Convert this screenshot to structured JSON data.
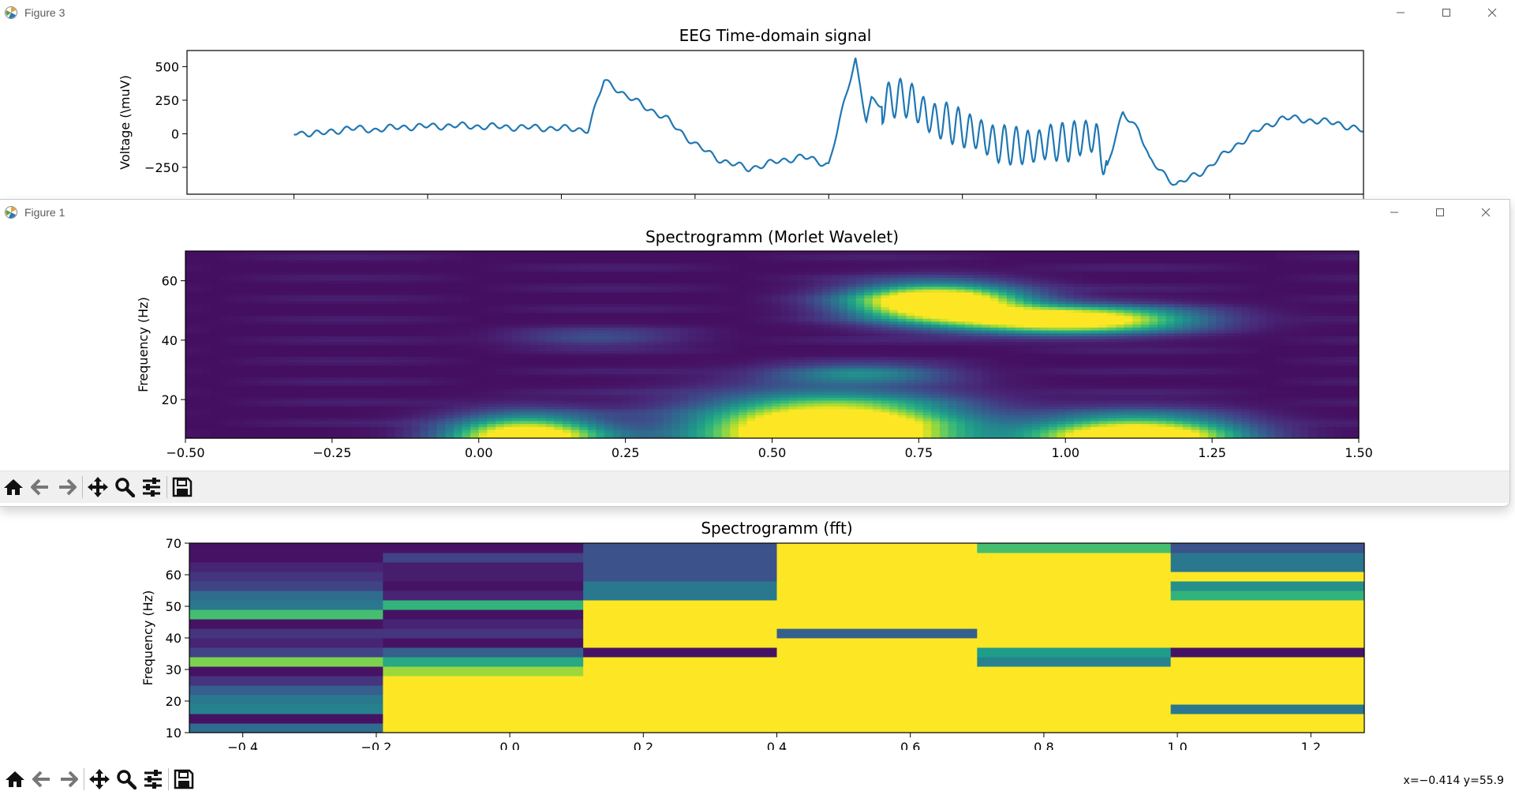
{
  "windows": {
    "fig3": {
      "title": "Figure 3"
    },
    "fig1": {
      "title": "Figure 1"
    }
  },
  "colors": {
    "line": "#1f77b4",
    "viridis_low": "#440154",
    "viridis_high": "#fde725"
  },
  "toolbar_icons": [
    "home-icon",
    "back-arrow-icon",
    "forward-arrow-icon",
    "pan-icon",
    "zoom-icon",
    "configure-subplots-icon",
    "save-icon"
  ],
  "status": {
    "coords": "x=−0.414 y=55.9"
  },
  "chart_data": [
    {
      "id": "eeg",
      "type": "line",
      "title": "EEG Time-domain signal",
      "xlabel": "",
      "ylabel": "Voltage (\\muV)",
      "xlim": [
        -0.7,
        1.5
      ],
      "ylim": [
        -450,
        620
      ],
      "yticks": [
        500,
        250,
        0,
        -250
      ],
      "ytick_labels": [
        "500",
        "250",
        "0",
        "−250"
      ],
      "xticks": [
        -0.5,
        -0.25,
        0.0,
        0.25,
        0.5,
        0.75,
        1.0,
        1.25,
        1.5
      ],
      "grid": false,
      "x": [
        -0.5,
        -0.45,
        -0.4,
        -0.35,
        -0.3,
        -0.2,
        -0.1,
        0.0,
        0.05,
        0.08,
        0.1,
        0.12,
        0.15,
        0.2,
        0.25,
        0.3,
        0.35,
        0.4,
        0.45,
        0.5,
        0.55,
        0.57,
        0.58,
        0.6,
        0.62,
        0.65,
        0.7,
        0.75,
        0.8,
        0.85,
        0.9,
        0.95,
        1.0,
        1.02,
        1.05,
        1.08,
        1.1,
        1.15,
        1.2,
        1.25,
        1.3,
        1.35,
        1.4,
        1.45,
        1.5
      ],
      "y": [
        10,
        0,
        40,
        30,
        50,
        60,
        50,
        40,
        30,
        400,
        350,
        280,
        220,
        100,
        -80,
        -200,
        -260,
        -210,
        -170,
        -230,
        560,
        100,
        250,
        200,
        280,
        250,
        100,
        50,
        -50,
        -100,
        -80,
        -50,
        -20,
        -250,
        150,
        40,
        -200,
        -380,
        -280,
        -120,
        20,
        120,
        100,
        80,
        20
      ]
    },
    {
      "id": "morlet",
      "type": "heatmap",
      "title": "Spectrogramm (Morlet Wavelet)",
      "xlabel": "",
      "ylabel": "Frequency (Hz)",
      "xlim": [
        -0.5,
        1.5
      ],
      "ylim": [
        7,
        70
      ],
      "xticks": [
        -0.5,
        -0.25,
        0.0,
        0.25,
        0.5,
        0.75,
        1.0,
        1.25,
        1.5
      ],
      "xtick_labels": [
        "−0.50",
        "−0.25",
        "0.00",
        "0.25",
        "0.50",
        "0.75",
        "1.00",
        "1.25",
        "1.50"
      ],
      "yticks": [
        60,
        40,
        20
      ],
      "ytick_labels": [
        "60",
        "40",
        "20"
      ],
      "colormap": "viridis",
      "blobs": [
        {
          "t": 0.08,
          "f": 7,
          "dt": 0.09,
          "df": 5,
          "amp": 1.3
        },
        {
          "t": 0.6,
          "f": 9,
          "dt": 0.15,
          "df": 8,
          "amp": 1.6
        },
        {
          "t": 1.12,
          "f": 7,
          "dt": 0.12,
          "df": 5,
          "amp": 1.4
        },
        {
          "t": 0.78,
          "f": 53,
          "dt": 0.1,
          "df": 4,
          "amp": 1.4
        },
        {
          "t": 1.0,
          "f": 47,
          "dt": 0.14,
          "df": 3,
          "amp": 1.3
        },
        {
          "t": 0.65,
          "f": 29,
          "dt": 0.1,
          "df": 2,
          "amp": 0.4
        },
        {
          "t": 0.2,
          "f": 41,
          "dt": 0.1,
          "df": 2,
          "amp": 0.2
        }
      ]
    },
    {
      "id": "fft",
      "type": "heatmap",
      "title": "Spectrogramm (fft)",
      "xlabel": "",
      "ylabel": "Frequency (Hz)",
      "xlim": [
        -0.48,
        1.28
      ],
      "ylim": [
        10,
        70
      ],
      "xticks": [
        -0.4,
        -0.2,
        0.0,
        0.2,
        0.4,
        0.6,
        0.8,
        1.0,
        1.2
      ],
      "xtick_labels": [
        "−0.4",
        "−0.2",
        "0.0",
        "0.2",
        "0.4",
        "0.6",
        "0.8",
        "1.0",
        "1.2"
      ],
      "yticks": [
        70,
        60,
        50,
        40,
        30,
        20,
        10
      ],
      "ytick_labels": [
        "70",
        "60",
        "50",
        "40",
        "30",
        "20",
        "10"
      ],
      "colormap": "viridis",
      "columns_x": [
        -0.48,
        -0.19,
        0.11,
        0.4,
        0.7,
        0.99,
        1.28
      ],
      "freq_bins": [
        10,
        13,
        16,
        19,
        22,
        25,
        28,
        31,
        34,
        37,
        40,
        43,
        46,
        49,
        52,
        55,
        58,
        61,
        64,
        67,
        70
      ],
      "values": [
        [
          0.35,
          0.05,
          0.45,
          0.4,
          0.3,
          0.15,
          0.05,
          0.8,
          0.2,
          0.1,
          0.15,
          0.05,
          0.7,
          0.4,
          0.35,
          0.2,
          0.15,
          0.1,
          0.05,
          0.05
        ],
        [
          1.0,
          1.0,
          1.0,
          1.0,
          1.0,
          1.0,
          0.85,
          0.6,
          0.3,
          0.05,
          0.15,
          0.1,
          0.05,
          0.65,
          0.1,
          0.05,
          0.08,
          0.08,
          0.2,
          0.05
        ],
        [
          1.0,
          1.0,
          1.0,
          1.0,
          1.0,
          1.0,
          1.0,
          1.0,
          0.05,
          1.0,
          1.0,
          1.0,
          1.0,
          1.0,
          0.4,
          0.4,
          0.25,
          0.25,
          0.25,
          0.25
        ],
        [
          1.0,
          1.0,
          1.0,
          1.0,
          1.0,
          1.0,
          1.0,
          1.0,
          1.0,
          1.0,
          0.3,
          1.0,
          1.0,
          1.0,
          1.0,
          1.0,
          1.0,
          1.0,
          1.0,
          1.0
        ],
        [
          1.0,
          1.0,
          1.0,
          1.0,
          1.0,
          1.0,
          1.0,
          0.45,
          0.55,
          1.0,
          1.0,
          1.0,
          1.0,
          1.0,
          1.0,
          1.0,
          1.0,
          1.0,
          1.0,
          0.7
        ],
        [
          1.0,
          1.0,
          0.4,
          1.0,
          1.0,
          1.0,
          1.0,
          1.0,
          0.05,
          1.0,
          1.0,
          1.0,
          1.0,
          1.0,
          0.65,
          0.5,
          1.0,
          0.4,
          0.4,
          0.25
        ]
      ]
    }
  ]
}
